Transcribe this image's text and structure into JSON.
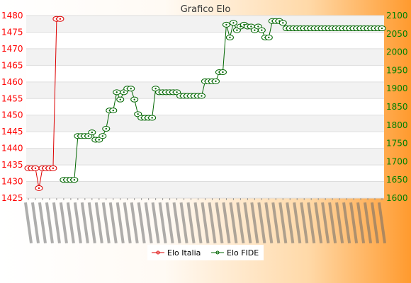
{
  "chart_data": {
    "type": "line",
    "title": "Grafico Elo",
    "grid": true,
    "legend_position": "bottom-center",
    "y_left": {
      "min": 1425,
      "max": 1480,
      "step": 5,
      "ticks": [
        "1425",
        "1430",
        "1435",
        "1440",
        "1445",
        "1450",
        "1455",
        "1460",
        "1465",
        "1470",
        "1475",
        "1480"
      ],
      "color": "#ff0000"
    },
    "y_right": {
      "min": 1600,
      "max": 2100,
      "step": 50,
      "ticks": [
        "1600",
        "1650",
        "1700",
        "1750",
        "1800",
        "1850",
        "1900",
        "1950",
        "2000",
        "2050",
        "2100"
      ],
      "color": "#008000"
    },
    "x_count": 101,
    "series": [
      {
        "name": "Elo Italia",
        "axis": "left",
        "color": "#dd0000",
        "x": [
          0,
          1,
          2,
          3,
          4,
          5,
          6,
          7,
          8,
          9
        ],
        "values": [
          1434,
          1434,
          1434,
          1428,
          1434,
          1434,
          1434,
          1434,
          1479,
          1479
        ]
      },
      {
        "name": "Elo FIDE",
        "axis": "right",
        "color": "#006600",
        "x_start": 10,
        "values": [
          1650,
          1650,
          1650,
          1650,
          1770,
          1770,
          1770,
          1770,
          1780,
          1760,
          1760,
          1770,
          1790,
          1840,
          1840,
          1890,
          1870,
          1890,
          1900,
          1900,
          1870,
          1830,
          1820,
          1820,
          1820,
          1820,
          1900,
          1890,
          1890,
          1890,
          1890,
          1890,
          1890,
          1880,
          1880,
          1880,
          1880,
          1880,
          1880,
          1880,
          1920,
          1920,
          1920,
          1920,
          1945,
          1945,
          2075,
          2040,
          2080,
          2060,
          2070,
          2075,
          2070,
          2070,
          2060,
          2070,
          2060,
          2040,
          2040,
          2085,
          2085,
          2085,
          2080,
          2065,
          2065,
          2065,
          2065,
          2065,
          2065,
          2065,
          2065,
          2065,
          2065,
          2065,
          2065,
          2065,
          2065,
          2065,
          2065,
          2065,
          2065,
          2065,
          2065,
          2065,
          2065,
          2065,
          2065,
          2065,
          2065,
          2065,
          2065
        ]
      }
    ]
  },
  "legend": {
    "italia": "Elo Italia",
    "fide": "Elo FIDE"
  }
}
